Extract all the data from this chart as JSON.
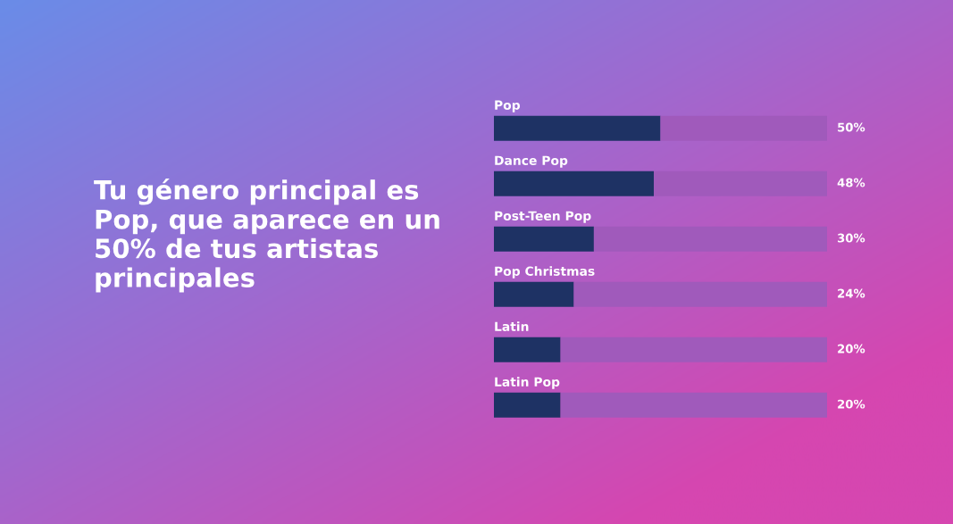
{
  "chart_data": {
    "type": "bar",
    "orientation": "horizontal",
    "stacked": true,
    "title": "Tu género principal es Pop, que aparece en un 50% de tus artistas principales",
    "categories": [
      "Pop",
      "Dance Pop",
      "Post-Teen Pop",
      "Pop Christmas",
      "Latin",
      "Latin Pop"
    ],
    "series": [
      {
        "color": "#1e3264",
        "values": [
          50,
          48,
          30,
          24,
          20,
          20
        ],
        "value_labels": [
          "50%",
          "48%",
          "30%",
          "24%",
          "20%",
          "20%"
        ]
      },
      {
        "color": "#a05abb",
        "values": [
          50,
          52,
          70,
          76,
          80,
          80
        ]
      }
    ],
    "xlim": [
      0,
      100
    ]
  }
}
